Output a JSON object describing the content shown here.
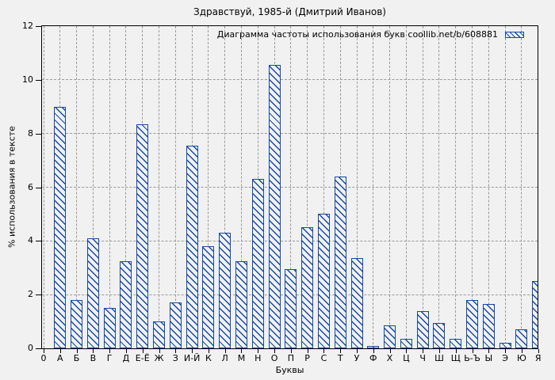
{
  "colors": {
    "bar": "#1549a3",
    "grid": "#9a9a9a",
    "background": "#f1f1f1",
    "frame": "#000000"
  },
  "chart_data": {
    "type": "bar",
    "title": "Здравствуй, 1985-й (Дмитрий Иванов)",
    "legend_label": "Диаграмма частоты использования букв coollib.net/b/608881",
    "legend_position": "top-right",
    "xlabel": "Буквы",
    "ylabel": "% использования в тексте",
    "ylim": [
      0,
      12
    ],
    "yticks": [
      0,
      2,
      4,
      6,
      8,
      10,
      12
    ],
    "grid": true,
    "bar_style": "hatched-outline",
    "categories": [
      "0",
      "А",
      "Б",
      "В",
      "Г",
      "Д",
      "Е-Ё",
      "Ж",
      "З",
      "И-Й",
      "К",
      "Л",
      "М",
      "Н",
      "О",
      "П",
      "Р",
      "С",
      "Т",
      "У",
      "Ф",
      "Х",
      "Ц",
      "Ч",
      "Ш",
      "Щ",
      "Ь-Ъ",
      "Ы",
      "Э",
      "Ю",
      "Я"
    ],
    "values": [
      0,
      9.0,
      1.8,
      4.1,
      1.5,
      3.25,
      8.35,
      1.0,
      1.7,
      7.55,
      3.8,
      4.3,
      3.25,
      6.3,
      10.55,
      2.95,
      4.5,
      5.0,
      6.4,
      3.35,
      0.1,
      0.85,
      0.35,
      1.4,
      0.95,
      0.35,
      1.8,
      1.65,
      0.2,
      0.7,
      2.5
    ]
  }
}
